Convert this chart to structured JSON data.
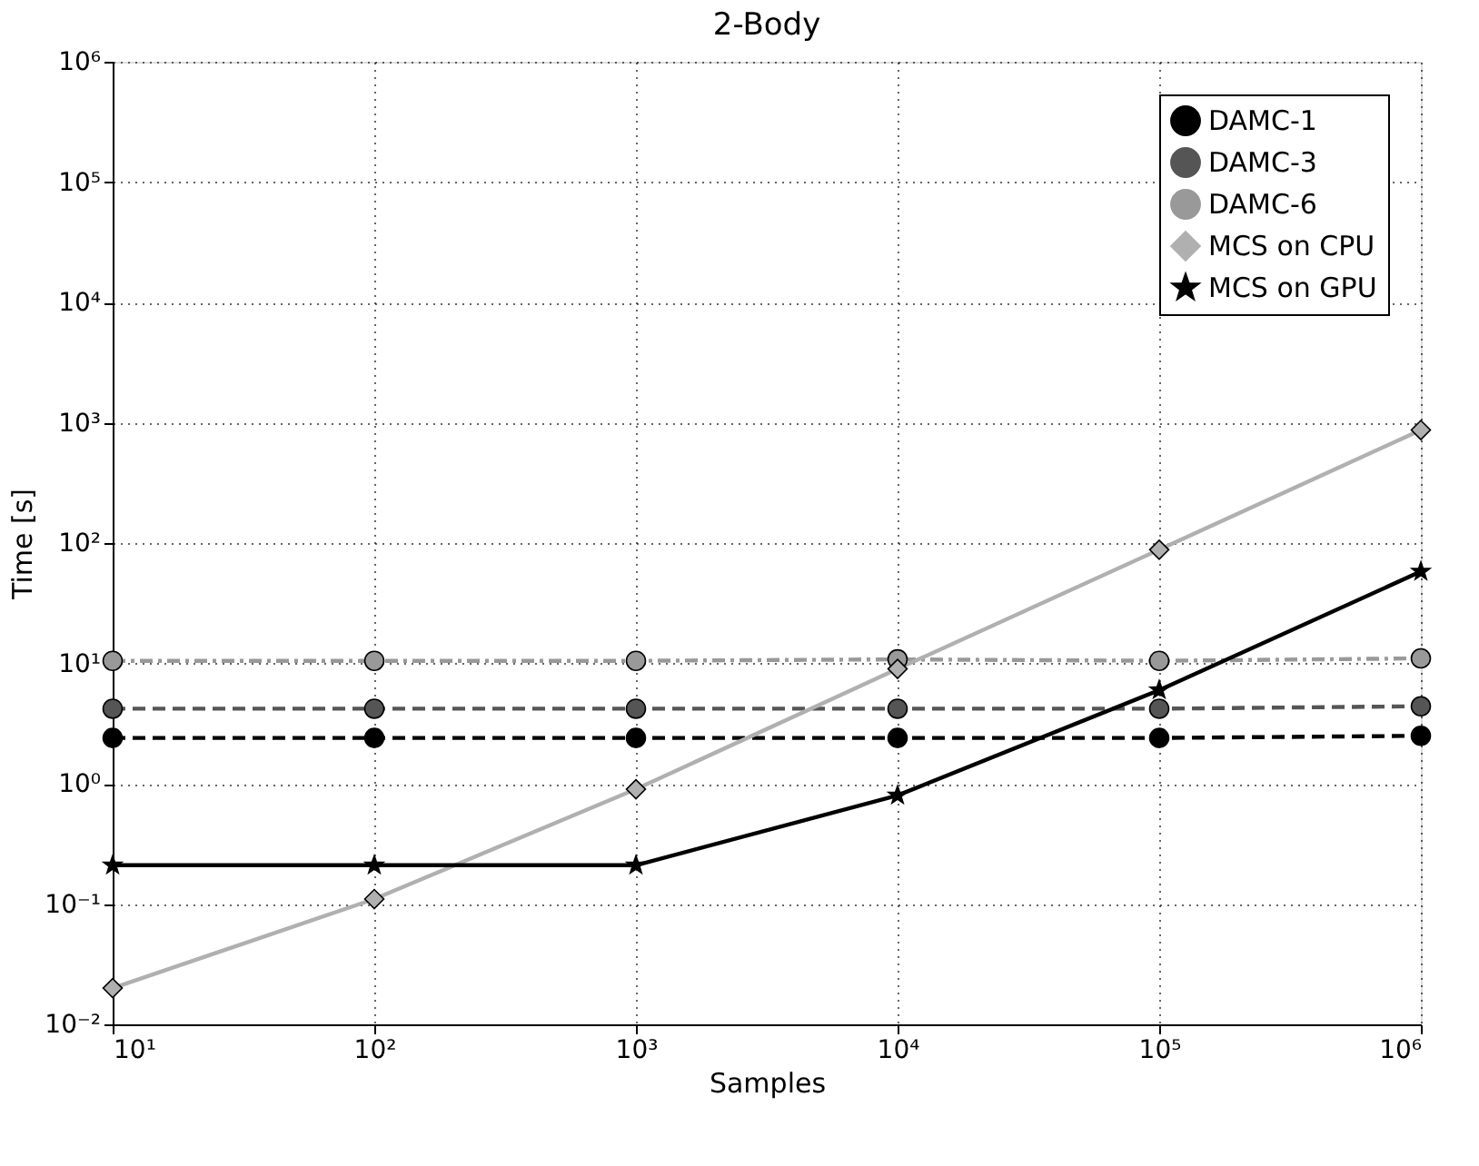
{
  "chart_data": {
    "type": "line",
    "title": "2-Body",
    "xlabel": "Samples",
    "ylabel": "Time [s]",
    "x": [
      10,
      100,
      1000,
      10000,
      100000,
      1000000
    ],
    "series": [
      {
        "name": "DAMC-1",
        "color": "#000000",
        "marker": "circle",
        "line_style": "dashed",
        "values": [
          2.4,
          2.4,
          2.4,
          2.4,
          2.4,
          2.5
        ]
      },
      {
        "name": "DAMC-3",
        "color": "#555555",
        "marker": "circle",
        "line_style": "dashed",
        "values": [
          4.2,
          4.2,
          4.2,
          4.2,
          4.2,
          4.4
        ]
      },
      {
        "name": "DAMC-6",
        "color": "#999999",
        "marker": "circle",
        "line_style": "dotted",
        "values": [
          10.5,
          10.5,
          10.5,
          10.8,
          10.5,
          11
        ]
      },
      {
        "name": "MCS on CPU",
        "color": "#b0b0b0",
        "marker": "diamond",
        "line_style": "solid",
        "values": [
          0.02,
          0.11,
          0.9,
          9,
          88,
          870
        ]
      },
      {
        "name": "MCS on GPU",
        "color": "#000000",
        "marker": "star",
        "line_style": "solid",
        "values": [
          0.21,
          0.21,
          0.21,
          0.8,
          6,
          58
        ]
      }
    ],
    "log": "xy",
    "grid": true,
    "legend": "top right",
    "xlim": [
      10,
      1000000
    ],
    "ylim": [
      0.01,
      1000000
    ],
    "xticks": [
      {
        "value": 10,
        "label": "10¹"
      },
      {
        "value": 100,
        "label": "10²"
      },
      {
        "value": 1000,
        "label": "10³"
      },
      {
        "value": 10000,
        "label": "10⁴"
      },
      {
        "value": 100000,
        "label": "10⁵"
      },
      {
        "value": 1000000,
        "label": "10⁶"
      }
    ],
    "yticks": [
      {
        "value": 0.01,
        "label": "10⁻²"
      },
      {
        "value": 0.1,
        "label": "10⁻¹"
      },
      {
        "value": 1,
        "label": "10⁰"
      },
      {
        "value": 10,
        "label": "10¹"
      },
      {
        "value": 100,
        "label": "10²"
      },
      {
        "value": 1000,
        "label": "10³"
      },
      {
        "value": 10000,
        "label": "10⁴"
      },
      {
        "value": 100000,
        "label": "10⁵"
      },
      {
        "value": 1000000,
        "label": "10⁶"
      }
    ]
  }
}
